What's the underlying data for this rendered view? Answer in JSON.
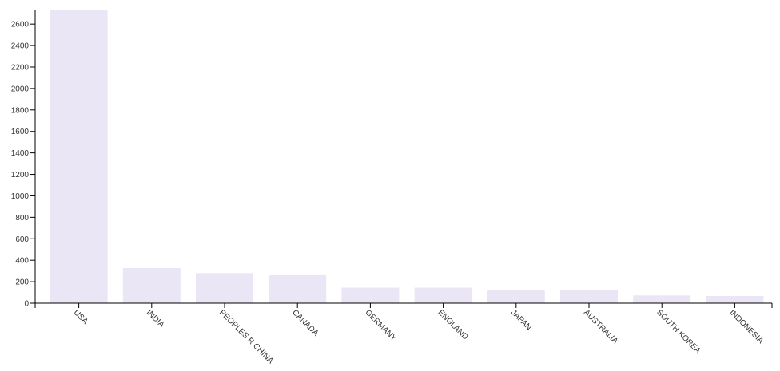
{
  "chart_data": {
    "type": "bar",
    "categories": [
      "USA",
      "INDIA",
      "PEOPLES R CHINA",
      "CANADA",
      "GERMANY",
      "ENGLAND",
      "JAPAN",
      "AUSTRALIA",
      "SOUTH KOREA",
      "INDONESIA"
    ],
    "values": [
      2735,
      327,
      280,
      260,
      145,
      145,
      122,
      122,
      72,
      67
    ],
    "yticks": [
      0,
      200,
      400,
      600,
      800,
      1000,
      1200,
      1400,
      1600,
      1800,
      2000,
      2200,
      2400,
      2600
    ],
    "ylim": [
      0,
      2735
    ],
    "title": "",
    "xlabel": "",
    "ylabel": "",
    "grid": false,
    "colors": {
      "bar": "#ebe6f6",
      "axis": "#000000",
      "text": "#333333"
    }
  }
}
